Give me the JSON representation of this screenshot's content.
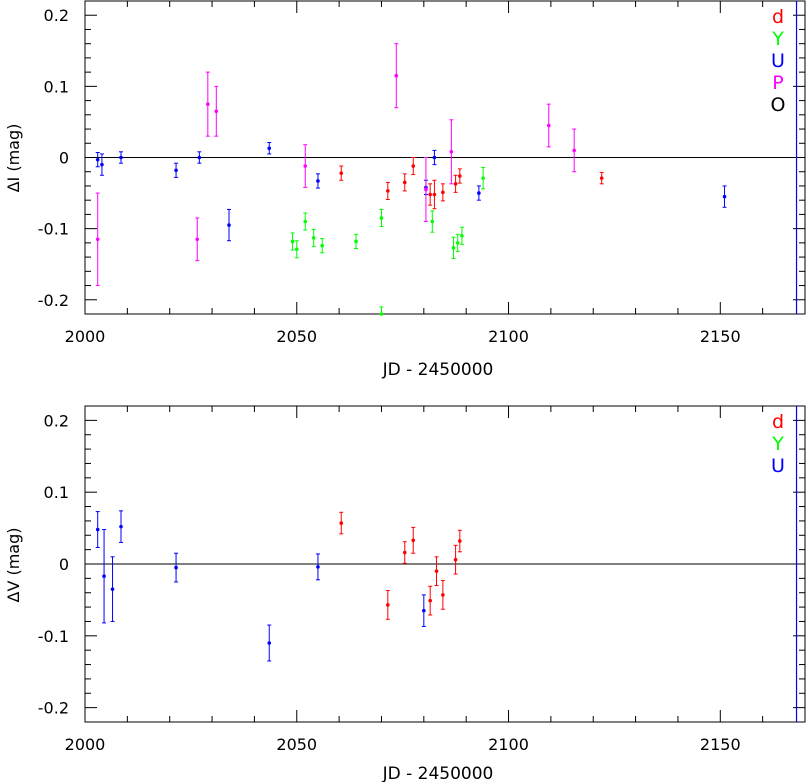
{
  "chart_data": [
    {
      "type": "scatter",
      "xlabel": "JD - 2450000",
      "ylabel": "ΔI (mag)",
      "xlim": [
        2000,
        2170
      ],
      "ylim": [
        -0.22,
        0.22
      ],
      "x_ticks": [
        2000,
        2050,
        2100,
        2150
      ],
      "y_ticks": [
        -0.2,
        -0.1,
        0,
        0.1,
        0.2
      ],
      "y_tick_labels": [
        "-0.2",
        "-0.1",
        "0",
        "0.1",
        "0.2"
      ],
      "reference_line_y": 0,
      "marker_line_x": 2168,
      "legend": [
        {
          "label": "d",
          "color": "#ff0000"
        },
        {
          "label": "Y",
          "color": "#00ff00"
        },
        {
          "label": "U",
          "color": "#0000ff"
        },
        {
          "label": "P",
          "color": "#ff00ff"
        },
        {
          "label": "O",
          "color": "#000000"
        }
      ],
      "series": [
        {
          "name": "d",
          "color": "#ff0000",
          "points": [
            {
              "x": 2060.5,
              "y": -0.022,
              "err": 0.01
            },
            {
              "x": 2071.5,
              "y": -0.047,
              "err": 0.012
            },
            {
              "x": 2075.5,
              "y": -0.035,
              "err": 0.012
            },
            {
              "x": 2077.5,
              "y": -0.012,
              "err": 0.012
            },
            {
              "x": 2081.5,
              "y": -0.052,
              "err": 0.015
            },
            {
              "x": 2082.5,
              "y": -0.052,
              "err": 0.02
            },
            {
              "x": 2084.5,
              "y": -0.049,
              "err": 0.012
            },
            {
              "x": 2087.5,
              "y": -0.037,
              "err": 0.012
            },
            {
              "x": 2088.5,
              "y": -0.026,
              "err": 0.01
            },
            {
              "x": 2122.0,
              "y": -0.029,
              "err": 0.008
            }
          ]
        },
        {
          "name": "Y",
          "color": "#00ff00",
          "points": [
            {
              "x": 2049.0,
              "y": -0.118,
              "err": 0.012
            },
            {
              "x": 2050.0,
              "y": -0.129,
              "err": 0.012
            },
            {
              "x": 2052.0,
              "y": -0.09,
              "err": 0.012
            },
            {
              "x": 2054.0,
              "y": -0.113,
              "err": 0.012
            },
            {
              "x": 2056.0,
              "y": -0.124,
              "err": 0.01
            },
            {
              "x": 2064.0,
              "y": -0.118,
              "err": 0.01
            },
            {
              "x": 2070.0,
              "y": -0.085,
              "err": 0.012
            },
            {
              "x": 2070.0,
              "y": -0.22,
              "err": 0.01
            },
            {
              "x": 2082.0,
              "y": -0.09,
              "err": 0.015
            },
            {
              "x": 2087.0,
              "y": -0.127,
              "err": 0.015
            },
            {
              "x": 2088.0,
              "y": -0.12,
              "err": 0.012
            },
            {
              "x": 2089.0,
              "y": -0.11,
              "err": 0.012
            },
            {
              "x": 2094.0,
              "y": -0.029,
              "err": 0.015
            }
          ]
        },
        {
          "name": "U",
          "color": "#0000ff",
          "points": [
            {
              "x": 2003.0,
              "y": -0.003,
              "err": 0.01
            },
            {
              "x": 2004.0,
              "y": -0.01,
              "err": 0.015
            },
            {
              "x": 2008.5,
              "y": 0.0,
              "err": 0.008
            },
            {
              "x": 2021.5,
              "y": -0.018,
              "err": 0.01
            },
            {
              "x": 2027.0,
              "y": 0.0,
              "err": 0.008
            },
            {
              "x": 2034.0,
              "y": -0.095,
              "err": 0.022
            },
            {
              "x": 2043.5,
              "y": 0.013,
              "err": 0.008
            },
            {
              "x": 2055.0,
              "y": -0.033,
              "err": 0.01
            },
            {
              "x": 2080.5,
              "y": -0.042,
              "err": 0.01
            },
            {
              "x": 2082.5,
              "y": 0.0,
              "err": 0.01
            },
            {
              "x": 2093.0,
              "y": -0.05,
              "err": 0.01
            },
            {
              "x": 2151.0,
              "y": -0.055,
              "err": 0.015
            }
          ]
        },
        {
          "name": "P",
          "color": "#ff00ff",
          "points": [
            {
              "x": 2003.0,
              "y": -0.115,
              "err": 0.065
            },
            {
              "x": 2026.5,
              "y": -0.115,
              "err": 0.03
            },
            {
              "x": 2029.0,
              "y": 0.075,
              "err": 0.045
            },
            {
              "x": 2031.0,
              "y": 0.065,
              "err": 0.035
            },
            {
              "x": 2052.0,
              "y": -0.012,
              "err": 0.03
            },
            {
              "x": 2073.5,
              "y": 0.115,
              "err": 0.045
            },
            {
              "x": 2080.5,
              "y": -0.045,
              "err": 0.045
            },
            {
              "x": 2086.5,
              "y": 0.008,
              "err": 0.045
            },
            {
              "x": 2109.5,
              "y": 0.045,
              "err": 0.03
            },
            {
              "x": 2115.5,
              "y": 0.01,
              "err": 0.03
            }
          ]
        }
      ]
    },
    {
      "type": "scatter",
      "xlabel": "JD - 2450000",
      "ylabel": "ΔV (mag)",
      "xlim": [
        2000,
        2170
      ],
      "ylim": [
        -0.22,
        0.22
      ],
      "x_ticks": [
        2000,
        2050,
        2100,
        2150
      ],
      "y_ticks": [
        -0.2,
        -0.1,
        0,
        0.1,
        0.2
      ],
      "y_tick_labels": [
        "-0.2",
        "-0.1",
        "0",
        "0.1",
        "0.2"
      ],
      "reference_line_y": 0,
      "marker_line_x": 2168,
      "legend": [
        {
          "label": "d",
          "color": "#ff0000"
        },
        {
          "label": "Y",
          "color": "#00ff00"
        },
        {
          "label": "U",
          "color": "#0000ff"
        }
      ],
      "series": [
        {
          "name": "d",
          "color": "#ff0000",
          "points": [
            {
              "x": 2060.5,
              "y": 0.057,
              "err": 0.015
            },
            {
              "x": 2071.5,
              "y": -0.057,
              "err": 0.02
            },
            {
              "x": 2075.5,
              "y": 0.016,
              "err": 0.015
            },
            {
              "x": 2077.5,
              "y": 0.033,
              "err": 0.018
            },
            {
              "x": 2081.5,
              "y": -0.051,
              "err": 0.02
            },
            {
              "x": 2083.0,
              "y": -0.01,
              "err": 0.02
            },
            {
              "x": 2084.5,
              "y": -0.043,
              "err": 0.02
            },
            {
              "x": 2087.5,
              "y": 0.006,
              "err": 0.02
            },
            {
              "x": 2088.5,
              "y": 0.032,
              "err": 0.015
            }
          ]
        },
        {
          "name": "U",
          "color": "#0000ff",
          "points": [
            {
              "x": 2003.0,
              "y": 0.048,
              "err": 0.025
            },
            {
              "x": 2004.5,
              "y": -0.017,
              "err": 0.065
            },
            {
              "x": 2006.5,
              "y": -0.035,
              "err": 0.045
            },
            {
              "x": 2008.5,
              "y": 0.052,
              "err": 0.022
            },
            {
              "x": 2021.5,
              "y": -0.005,
              "err": 0.02
            },
            {
              "x": 2043.5,
              "y": -0.11,
              "err": 0.025
            },
            {
              "x": 2055.0,
              "y": -0.004,
              "err": 0.018
            },
            {
              "x": 2080.0,
              "y": -0.065,
              "err": 0.022
            }
          ]
        }
      ]
    }
  ]
}
